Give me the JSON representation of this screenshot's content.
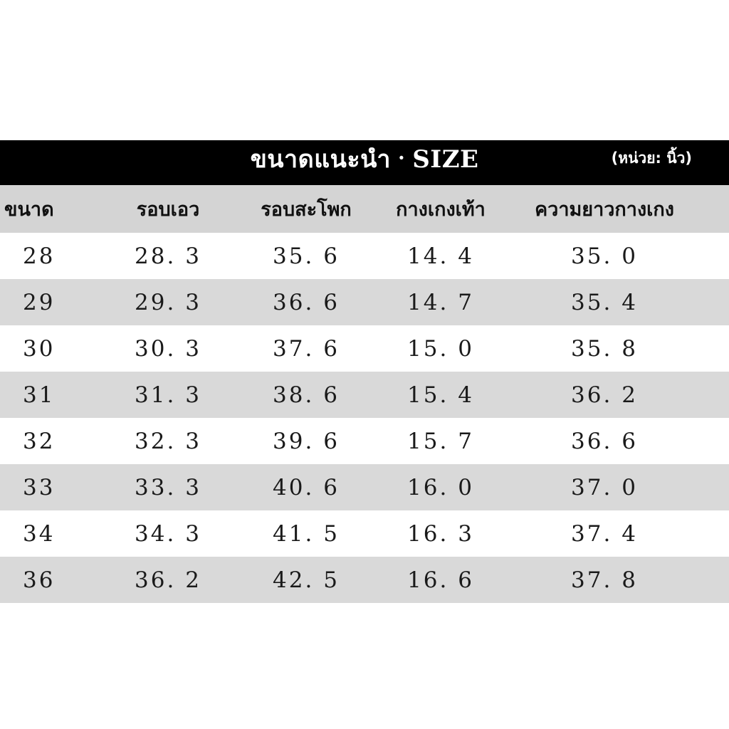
{
  "title": {
    "text": "ขนาดแนะนำ",
    "separator": "·",
    "suffix": "SIZE",
    "unit": "(หน่วย: นิ้ว)"
  },
  "colors": {
    "title_bg": "#000000",
    "title_fg": "#ffffff",
    "header_bg": "#d4d4d4",
    "stripe_bg": "#d9d9d9",
    "body_bg": "#ffffff"
  },
  "table": {
    "columns": [
      "ขนาด",
      "รอบเอว",
      "รอบสะโพก",
      "กางเกงเท้า",
      "ความยาวกางเกง"
    ],
    "rows": [
      [
        "28",
        "28. 3",
        "35. 6",
        "14. 4",
        "35. 0"
      ],
      [
        "29",
        "29. 3",
        "36. 6",
        "14. 7",
        "35. 4"
      ],
      [
        "30",
        "30. 3",
        "37. 6",
        "15. 0",
        "35. 8"
      ],
      [
        "31",
        "31. 3",
        "38. 6",
        "15. 4",
        "36. 2"
      ],
      [
        "32",
        "32. 3",
        "39. 6",
        "15. 7",
        "36. 6"
      ],
      [
        "33",
        "33. 3",
        "40. 6",
        "16. 0",
        "37. 0"
      ],
      [
        "34",
        "34. 3",
        "41. 5",
        "16. 3",
        "37. 4"
      ],
      [
        "36",
        "36. 2",
        "42. 5",
        "16. 6",
        "37. 8"
      ]
    ]
  }
}
